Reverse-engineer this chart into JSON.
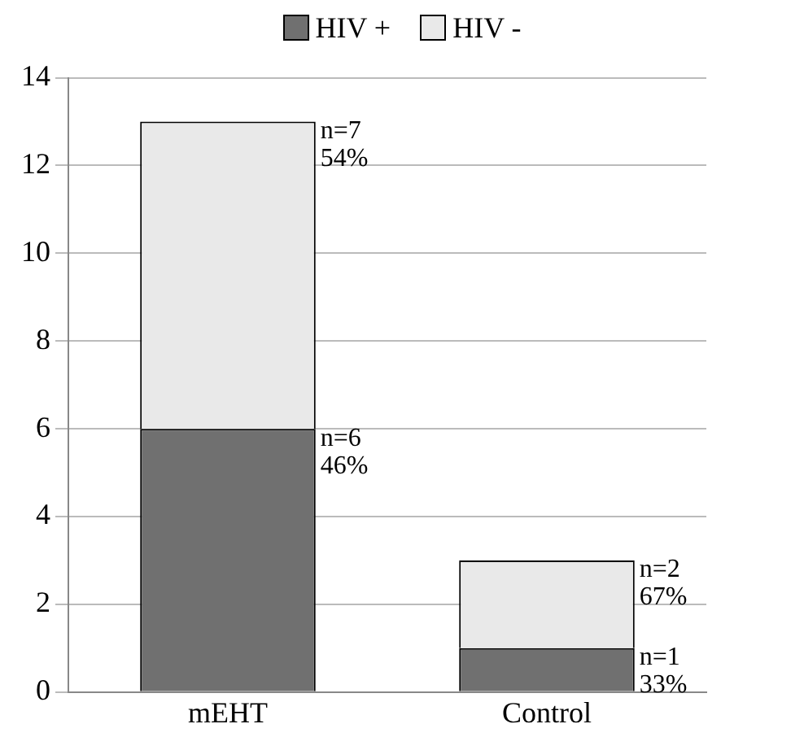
{
  "chart_data": {
    "type": "bar",
    "stacked": true,
    "categories": [
      "mEHT",
      "Control"
    ],
    "series": [
      {
        "name": "HIV +",
        "color": "#707070",
        "values": [
          6,
          1
        ]
      },
      {
        "name": "HIV -",
        "color": "#e9e9e9",
        "values": [
          7,
          2
        ]
      }
    ],
    "annotations": [
      "n=7\n54%",
      "n=6\n46%",
      "n=2\n67%",
      "n=1\n33%"
    ],
    "ylim": [
      0,
      14
    ],
    "yticks": [
      0,
      2,
      4,
      6,
      8,
      10,
      12,
      14
    ],
    "grid": "y",
    "legend": "top"
  }
}
